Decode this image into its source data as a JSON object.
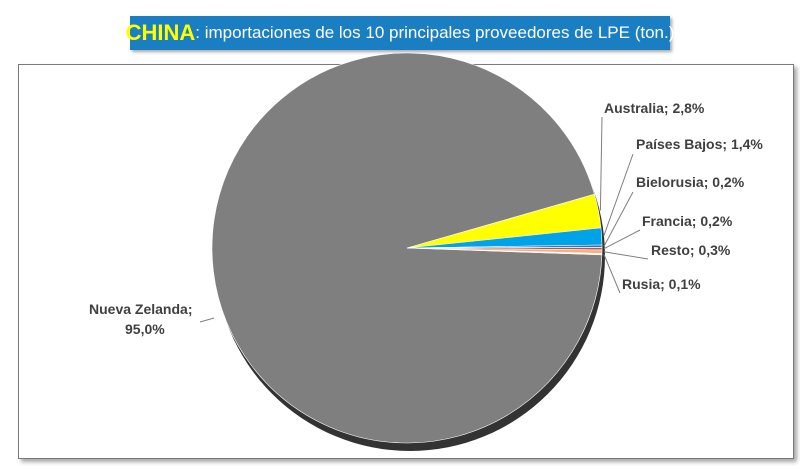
{
  "title": {
    "highlight": "CHINA",
    "rest": ": importaciones de los 10 principales proveedores de LPE (ton.)"
  },
  "chart_data": {
    "type": "pie",
    "title": "CHINA: importaciones de los 10 principales proveedores de LPE (ton.)",
    "slices": [
      {
        "label": "Nueva Zelanda",
        "value": 95.0,
        "display": "Nueva Zelanda; 95,0%",
        "color": "#7f7f7f"
      },
      {
        "label": "Australia",
        "value": 2.8,
        "display": "Australia; 2,8%",
        "color": "#ffff00"
      },
      {
        "label": "Países Bajos",
        "value": 1.4,
        "display": "Países Bajos; 1,4%",
        "color": "#00a2e8"
      },
      {
        "label": "Bielorusia",
        "value": 0.2,
        "display": "Bielorusia; 0,2%",
        "color": "#2e75b6"
      },
      {
        "label": "Francia",
        "value": 0.2,
        "display": "Francia; 0,2%",
        "color": "#c0504d"
      },
      {
        "label": "Resto",
        "value": 0.3,
        "display": "Resto; 0,3%",
        "color": "#f4b183"
      },
      {
        "label": "Rusia",
        "value": 0.1,
        "display": "Rusia; 0,1%",
        "color": "#fff2cc"
      }
    ],
    "legend": "none",
    "data_labels": "outside with leader lines"
  },
  "colors": {
    "title_bg": "#1a7ec2",
    "title_highlight": "#ffff00",
    "title_text": "#ffffff"
  }
}
